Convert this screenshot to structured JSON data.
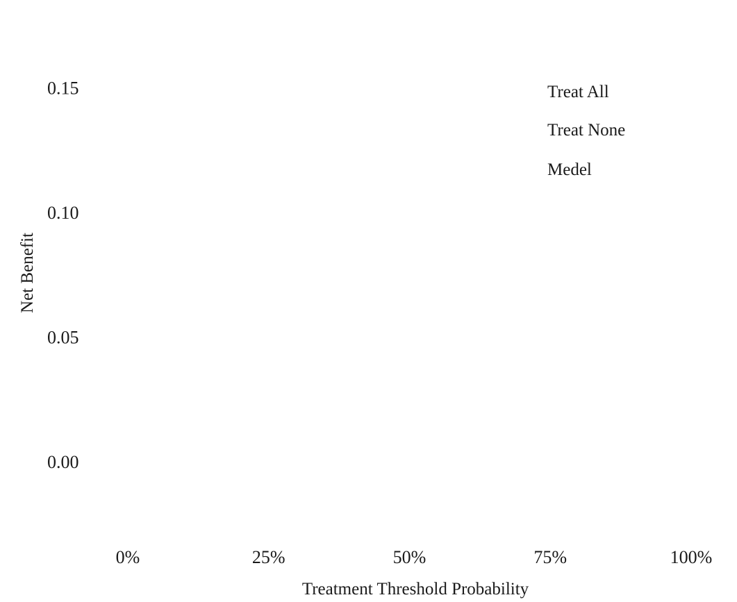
{
  "chart_data": {
    "type": "line",
    "title": "",
    "xlabel": "Treatment Threshold Probability",
    "ylabel": "Net Benefit",
    "xlim": [
      0,
      1
    ],
    "ylim": [
      -0.025,
      0.16
    ],
    "x_ticks": [
      0,
      0.25,
      0.5,
      0.75,
      1.0
    ],
    "x_tick_labels": [
      "0%",
      "25%",
      "50%",
      "75%",
      "100%"
    ],
    "y_ticks": [
      0.15,
      0.1,
      0.05,
      0.0
    ],
    "y_tick_labels": [
      "0.15",
      "0.10",
      "0.05",
      "0.00"
    ],
    "grid": false,
    "legend_position": "top-right",
    "legend": [
      "Treat All",
      "Treat None",
      "Medel"
    ],
    "series": [
      {
        "name": "Treat All",
        "x": [],
        "y": []
      },
      {
        "name": "Treat None",
        "x": [],
        "y": []
      },
      {
        "name": "Medel",
        "x": [],
        "y": []
      }
    ]
  }
}
